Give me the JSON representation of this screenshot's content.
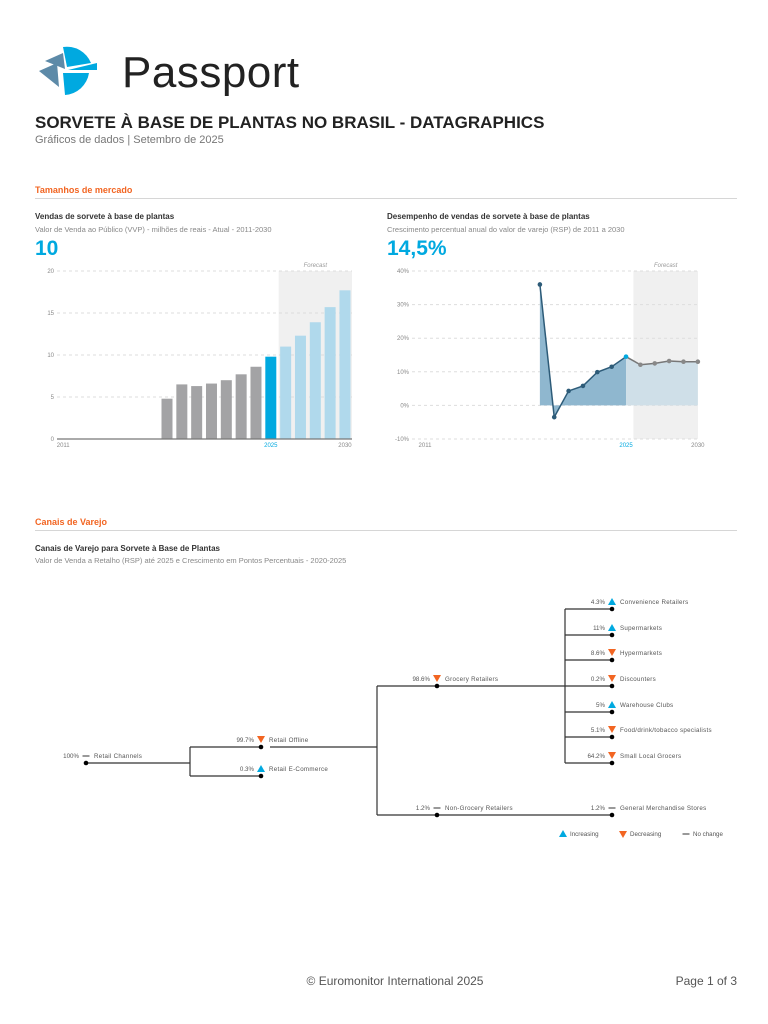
{
  "header": {
    "brand": "Passport",
    "title": "SORVETE À BASE DE PLANTAS NO BRASIL - DATAGRAPHICS",
    "subtitle": "Gráficos de dados | Setembro de 2025"
  },
  "sections": {
    "market": "Tamanhos de mercado",
    "channels": "Canais de Varejo"
  },
  "colors": {
    "accent": "#00a9e0",
    "orange": "#f26522",
    "gray_bar": "#a3a3a5",
    "forecast_bar": "#b0d9ec",
    "area": "#8fb7cf",
    "line": "#2d5b78"
  },
  "chart_data": [
    {
      "type": "bar",
      "title": "Vendas de sorvete à base de plantas",
      "subtitle": "Valor de Venda ao Público (VVP) - milhões de reais - Atual - 2011-2030",
      "headline": "10",
      "forecast_label": "Forecast",
      "forecast_from": 2026,
      "highlight": 2025,
      "xlim": [
        2011,
        2030
      ],
      "x_ticks": [
        "2011",
        "2025",
        "2030"
      ],
      "ylim": [
        0,
        20
      ],
      "y_ticks": [
        "0",
        "5",
        "10",
        "15",
        "20"
      ],
      "grid": true,
      "x": [
        2018,
        2019,
        2020,
        2021,
        2022,
        2023,
        2024,
        2025,
        2026,
        2027,
        2028,
        2029,
        2030
      ],
      "values": [
        4.8,
        6.5,
        6.3,
        6.6,
        7.0,
        7.7,
        8.6,
        9.8,
        11.0,
        12.3,
        13.9,
        15.7,
        17.7
      ]
    },
    {
      "type": "area",
      "title": "Desempenho de vendas de sorvete à base de plantas",
      "subtitle": "Crescimento percentual anual do valor de varejo (RSP) de 2011 a 2030",
      "headline": "14,5%",
      "forecast_label": "Forecast",
      "forecast_from": 2026,
      "highlight": 2025,
      "xlim": [
        2011,
        2030
      ],
      "x_ticks": [
        "2011",
        "2025",
        "2030"
      ],
      "ylim": [
        -10,
        40
      ],
      "y_ticks": [
        "-10%",
        "0%",
        "10%",
        "20%",
        "30%",
        "40%"
      ],
      "grid": true,
      "x": [
        2019,
        2020,
        2021,
        2022,
        2023,
        2024,
        2025,
        2026,
        2027,
        2028,
        2029,
        2030
      ],
      "values": [
        36.0,
        -3.5,
        4.3,
        5.8,
        9.9,
        11.5,
        14.5,
        12.1,
        12.5,
        13.2,
        13.0,
        13.0
      ]
    }
  ],
  "channels": {
    "title": "Canais de Varejo para Sorvete à Base de Plantas",
    "subtitle": "Valor de Venda a Retalho (RSP) até 2025 e Crescimento em Pontos Percentuais - 2020-2025",
    "nodes": [
      {
        "id": "rc",
        "name": "Retail Channels",
        "pct": "100%",
        "trend": "none"
      },
      {
        "id": "off",
        "name": "Retail Offline",
        "pct": "99.7%",
        "trend": "down",
        "parent": "rc"
      },
      {
        "id": "ec",
        "name": "Retail E-Commerce",
        "pct": "0.3%",
        "trend": "up",
        "parent": "rc"
      },
      {
        "id": "gr",
        "name": "Grocery Retailers",
        "pct": "98.6%",
        "trend": "down",
        "parent": "off"
      },
      {
        "id": "ng",
        "name": "Non-Grocery Retailers",
        "pct": "1.2%",
        "trend": "none",
        "parent": "off"
      },
      {
        "id": "cv",
        "name": "Convenience Retailers",
        "pct": "4.3%",
        "trend": "up",
        "parent": "gr"
      },
      {
        "id": "su",
        "name": "Supermarkets",
        "pct": "11%",
        "trend": "up",
        "parent": "gr"
      },
      {
        "id": "hy",
        "name": "Hypermarkets",
        "pct": "8.6%",
        "trend": "down",
        "parent": "gr"
      },
      {
        "id": "di",
        "name": "Discounters",
        "pct": "0.2%",
        "trend": "down",
        "parent": "gr"
      },
      {
        "id": "wc",
        "name": "Warehouse Clubs",
        "pct": "5%",
        "trend": "up",
        "parent": "gr"
      },
      {
        "id": "fd",
        "name": "Food/drink/tobacco specialists",
        "pct": "5.1%",
        "trend": "down",
        "parent": "gr"
      },
      {
        "id": "sl",
        "name": "Small Local Grocers",
        "pct": "64.2%",
        "trend": "down",
        "parent": "gr"
      },
      {
        "id": "gm",
        "name": "General Merchandise Stores",
        "pct": "1.2%",
        "trend": "none",
        "parent": "ng"
      }
    ],
    "legend": {
      "up": "Increasing",
      "down": "Decreasing",
      "none": "No change"
    }
  },
  "footer": {
    "copyright": "© Euromonitor International 2025",
    "page": "Page 1 of 3"
  }
}
